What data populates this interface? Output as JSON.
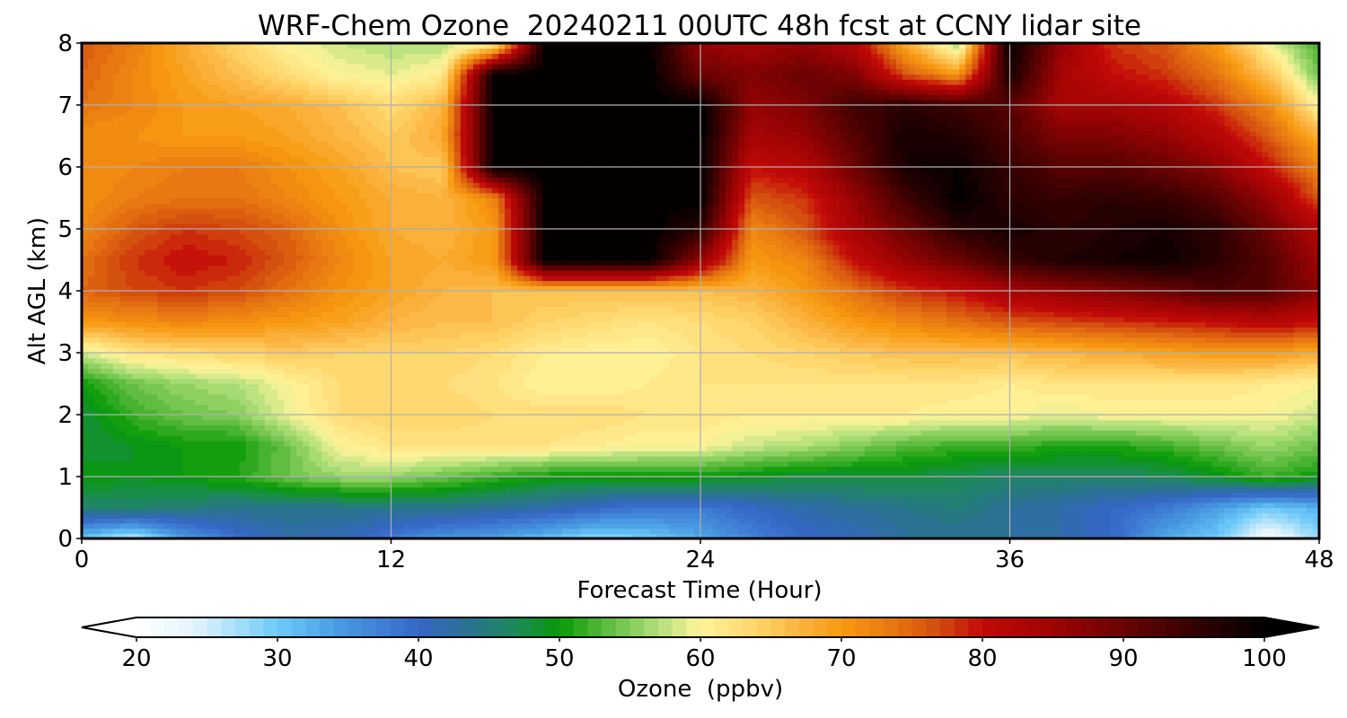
{
  "chart_data": {
    "type": "heatmap",
    "title": "WRF-Chem Ozone  20240211 00UTC 48h fcst at CCNY lidar site",
    "xlabel": "Forecast Time (Hour)",
    "ylabel": "Alt AGL (km)",
    "xlim": [
      0,
      48
    ],
    "ylim": [
      0,
      8
    ],
    "xticks": [
      0,
      12,
      24,
      36,
      48
    ],
    "yticks": [
      0,
      1,
      2,
      3,
      4,
      5,
      6,
      7,
      8
    ],
    "grid": true,
    "colorbar": {
      "label": "Ozone  (ppbv)",
      "orientation": "horizontal",
      "placement": "bottom",
      "range": [
        20,
        100
      ],
      "ticks": [
        20,
        30,
        40,
        50,
        60,
        70,
        80,
        90,
        100
      ],
      "extend": "both",
      "levels": 80,
      "color_stops": [
        [
          20,
          "#ffffff"
        ],
        [
          24,
          "#e6f4fc"
        ],
        [
          30,
          "#6ccaf8"
        ],
        [
          34,
          "#4a9ee4"
        ],
        [
          40,
          "#3667c8"
        ],
        [
          43,
          "#2c6f9a"
        ],
        [
          47,
          "#1d8a58"
        ],
        [
          50,
          "#079a06"
        ],
        [
          53,
          "#55b83a"
        ],
        [
          57,
          "#b0e07a"
        ],
        [
          60,
          "#fff49b"
        ],
        [
          64,
          "#ffd46a"
        ],
        [
          67,
          "#fbb441"
        ],
        [
          70,
          "#f79a10"
        ],
        [
          74,
          "#e67312"
        ],
        [
          77,
          "#d24a0e"
        ],
        [
          80,
          "#c30808"
        ],
        [
          85,
          "#9f0404"
        ],
        [
          90,
          "#6a0202"
        ],
        [
          95,
          "#350101"
        ],
        [
          100,
          "#000000"
        ]
      ]
    },
    "x": [
      0,
      2,
      4,
      6,
      8,
      10,
      12,
      14,
      16,
      18,
      20,
      22,
      24,
      26,
      28,
      30,
      32,
      34,
      36,
      38,
      40,
      42,
      44,
      46,
      48
    ],
    "y": [
      0,
      0.5,
      1,
      1.5,
      2,
      2.5,
      3,
      3.5,
      4,
      4.5,
      5,
      5.5,
      6,
      6.5,
      7,
      7.5,
      8
    ],
    "values": [
      [
        30,
        26,
        34,
        39,
        42,
        41,
        38,
        35,
        34,
        31,
        28,
        30,
        33,
        37,
        40,
        41,
        43,
        43,
        43,
        42,
        40,
        33,
        30,
        21,
        28
      ],
      [
        46,
        46,
        45,
        44,
        44,
        44,
        44,
        44,
        43,
        42,
        40,
        38,
        38,
        40,
        42,
        43,
        44,
        45,
        43,
        42,
        40,
        38,
        34,
        30,
        32
      ],
      [
        50,
        49,
        50,
        51,
        54,
        56,
        56,
        54,
        52,
        50,
        50,
        50,
        50,
        49,
        48,
        48,
        48,
        47,
        46,
        46,
        46,
        47,
        49,
        52,
        50
      ],
      [
        48,
        49,
        50,
        50,
        54,
        60,
        62,
        62,
        62,
        62,
        61,
        60,
        60,
        58,
        57,
        55,
        53,
        52,
        52,
        51,
        51,
        52,
        54,
        56,
        54
      ],
      [
        48,
        52,
        54,
        55,
        59,
        63,
        64,
        64,
        63,
        63,
        63,
        62,
        62,
        61,
        61,
        61,
        61,
        60,
        60,
        59,
        60,
        60,
        60,
        60,
        58
      ],
      [
        50,
        54,
        56,
        57,
        60,
        63,
        63,
        63,
        62,
        60,
        60,
        61,
        62,
        62,
        62,
        62,
        62,
        62,
        61,
        62,
        62,
        62,
        62,
        61,
        60
      ],
      [
        58,
        62,
        63,
        64,
        65,
        64,
        64,
        64,
        63,
        61,
        60,
        60,
        62,
        63,
        64,
        65,
        66,
        66,
        66,
        67,
        68,
        69,
        70,
        70,
        68
      ],
      [
        70,
        71,
        72,
        71,
        70,
        69,
        67,
        66,
        66,
        64,
        63,
        62,
        63,
        64,
        67,
        70,
        72,
        74,
        76,
        77,
        78,
        79,
        80,
        82,
        80
      ],
      [
        75,
        77,
        78,
        77,
        74,
        71,
        69,
        67,
        66,
        66,
        66,
        66,
        66,
        67,
        70,
        74,
        78,
        80,
        84,
        86,
        88,
        90,
        93,
        92,
        87
      ],
      [
        74,
        78,
        80,
        79,
        76,
        72,
        69,
        68,
        70,
        100,
        100,
        100,
        86,
        70,
        72,
        80,
        86,
        90,
        95,
        97,
        98,
        99,
        96,
        92,
        85
      ],
      [
        72,
        76,
        78,
        77,
        75,
        71,
        68,
        67,
        70,
        100,
        100,
        100,
        96,
        72,
        76,
        84,
        90,
        96,
        98,
        96,
        97,
        98,
        96,
        90,
        82
      ],
      [
        71,
        73,
        74,
        74,
        72,
        70,
        68,
        67,
        72,
        100,
        100,
        100,
        100,
        76,
        78,
        86,
        94,
        100,
        96,
        95,
        96,
        95,
        92,
        86,
        76
      ],
      [
        71,
        72,
        73,
        73,
        71,
        69,
        66,
        65,
        100,
        100,
        100,
        100,
        100,
        80,
        82,
        90,
        98,
        99,
        95,
        92,
        92,
        90,
        87,
        80,
        72
      ],
      [
        71,
        71,
        70,
        70,
        69,
        67,
        65,
        68,
        100,
        100,
        100,
        100,
        100,
        84,
        86,
        92,
        98,
        97,
        93,
        88,
        88,
        86,
        82,
        76,
        68
      ],
      [
        74,
        72,
        70,
        69,
        68,
        66,
        63,
        67,
        100,
        100,
        100,
        100,
        100,
        86,
        88,
        94,
        96,
        94,
        92,
        84,
        84,
        82,
        78,
        72,
        60
      ],
      [
        75,
        72,
        69,
        66,
        63,
        60,
        59,
        61,
        100,
        100,
        100,
        100,
        90,
        88,
        90,
        88,
        76,
        70,
        98,
        84,
        80,
        78,
        74,
        66,
        54
      ],
      [
        76,
        73,
        68,
        64,
        60,
        58,
        57,
        57,
        60,
        100,
        100,
        100,
        86,
        84,
        86,
        82,
        68,
        56,
        100,
        86,
        78,
        76,
        70,
        60,
        52
      ]
    ]
  }
}
